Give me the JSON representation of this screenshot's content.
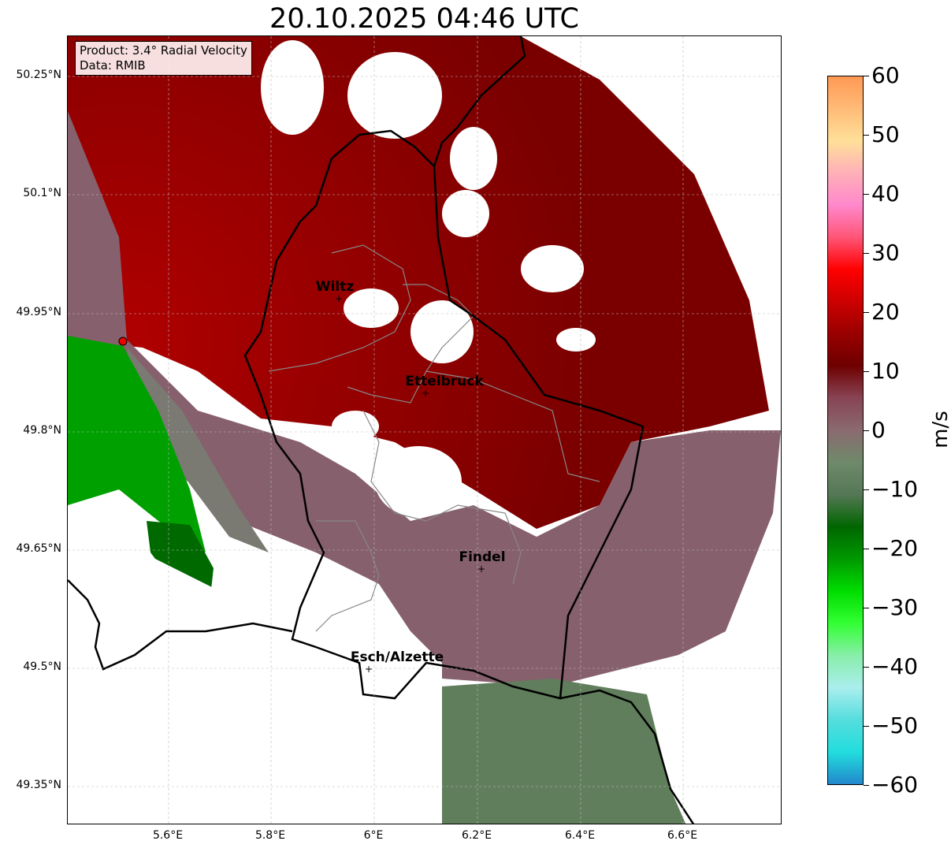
{
  "title": "20.10.2025 04:46 UTC",
  "info": {
    "product": "Product: 3.4° Radial Velocity",
    "data": "Data: RMIB"
  },
  "lat_ticks": [
    "50.25°N",
    "50.1°N",
    "49.95°N",
    "49.8°N",
    "49.65°N",
    "49.5°N",
    "49.35°N"
  ],
  "lon_ticks": [
    "5.6°E",
    "5.8°E",
    "6°E",
    "6.2°E",
    "6.4°E",
    "6.6°E"
  ],
  "cities": [
    {
      "name": "Wiltz"
    },
    {
      "name": "Ettelbruck"
    },
    {
      "name": "Findel"
    },
    {
      "name": "Esch/Alzette"
    }
  ],
  "colorbar": {
    "unit": "m/s",
    "min": -60,
    "max": 60,
    "ticks": [
      "60",
      "50",
      "40",
      "30",
      "20",
      "10",
      "0",
      "−10",
      "−20",
      "−30",
      "−40",
      "−50",
      "−60"
    ],
    "colors": [
      "#ff9955",
      "#ffbb77",
      "#ffe099",
      "#ffb0b8",
      "#ff88cc",
      "#ff5577",
      "#ff0000",
      "#cc0000",
      "#990000",
      "#6e0000",
      "#884455",
      "#8a6a70",
      "#6e8a6a",
      "#557755",
      "#006600",
      "#009900",
      "#00dd00",
      "#33ff33",
      "#88eeaa",
      "#aaeeee",
      "#55dddd",
      "#22dddd",
      "#2288cc"
    ]
  }
}
